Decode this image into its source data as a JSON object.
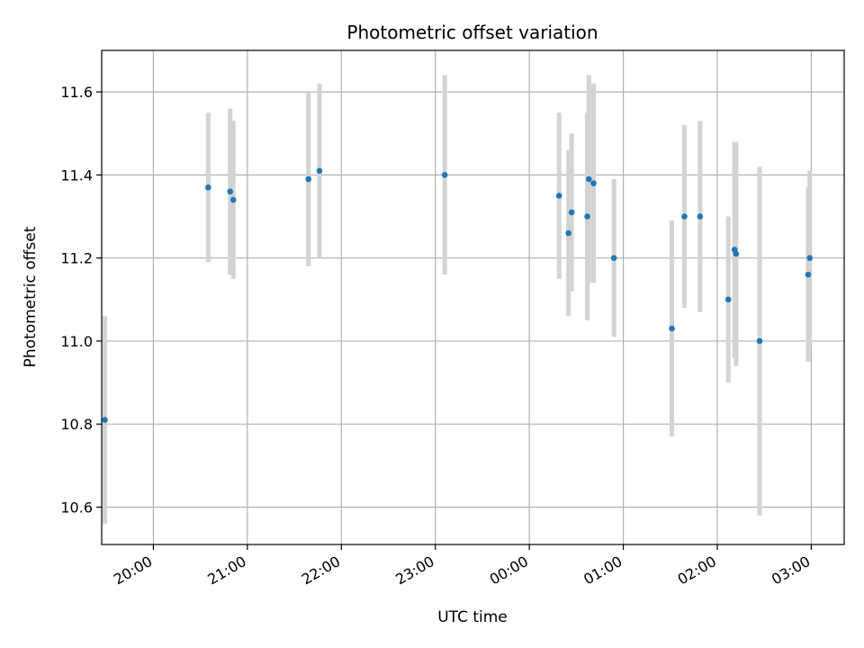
{
  "chart_data": {
    "type": "scatter",
    "title": "Photometric offset variation",
    "xlabel": "UTC time",
    "ylabel": "Photometric offset",
    "x_unit": "UTC time (HH:MM)",
    "xlim": [
      "19:27",
      "03:21"
    ],
    "ylim": [
      10.51,
      11.7
    ],
    "x_ticks": [
      "20:00",
      "21:00",
      "22:00",
      "23:00",
      "00:00",
      "01:00",
      "02:00",
      "03:00"
    ],
    "y_ticks": [
      "10.6",
      "10.8",
      "11.0",
      "11.2",
      "11.4",
      "11.6"
    ],
    "y_tick_values": [
      10.6,
      10.8,
      11.0,
      11.2,
      11.4,
      11.6
    ],
    "grid": true,
    "marker_color": "#1f77b4",
    "errorbar_color": "#d3d3d3",
    "points": [
      {
        "time": "19:29",
        "y": 10.81,
        "yerr": 0.25
      },
      {
        "time": "20:35",
        "y": 11.37,
        "yerr": 0.18
      },
      {
        "time": "20:49",
        "y": 11.36,
        "yerr": 0.2
      },
      {
        "time": "20:51",
        "y": 11.34,
        "yerr": 0.19
      },
      {
        "time": "21:39",
        "y": 11.39,
        "yerr": 0.21
      },
      {
        "time": "21:46",
        "y": 11.41,
        "yerr": 0.21
      },
      {
        "time": "23:06",
        "y": 11.4,
        "yerr": 0.24
      },
      {
        "time": "00:19",
        "y": 11.35,
        "yerr": 0.2
      },
      {
        "time": "00:25",
        "y": 11.26,
        "yerr": 0.2
      },
      {
        "time": "00:27",
        "y": 11.31,
        "yerr": 0.19
      },
      {
        "time": "00:37",
        "y": 11.3,
        "yerr": 0.25
      },
      {
        "time": "00:38",
        "y": 11.39,
        "yerr": 0.25
      },
      {
        "time": "00:41",
        "y": 11.38,
        "yerr": 0.24
      },
      {
        "time": "00:54",
        "y": 11.2,
        "yerr": 0.19
      },
      {
        "time": "01:31",
        "y": 11.03,
        "yerr": 0.26
      },
      {
        "time": "01:39",
        "y": 11.3,
        "yerr": 0.22
      },
      {
        "time": "01:49",
        "y": 11.3,
        "yerr": 0.23
      },
      {
        "time": "02:07",
        "y": 11.1,
        "yerr": 0.2
      },
      {
        "time": "02:11",
        "y": 11.22,
        "yerr": 0.26
      },
      {
        "time": "02:12",
        "y": 11.21,
        "yerr": 0.27
      },
      {
        "time": "02:27",
        "y": 11.0,
        "yerr": 0.42
      },
      {
        "time": "02:58",
        "y": 11.16,
        "yerr": 0.21
      },
      {
        "time": "02:59",
        "y": 11.2,
        "yerr": 0.21
      }
    ]
  }
}
